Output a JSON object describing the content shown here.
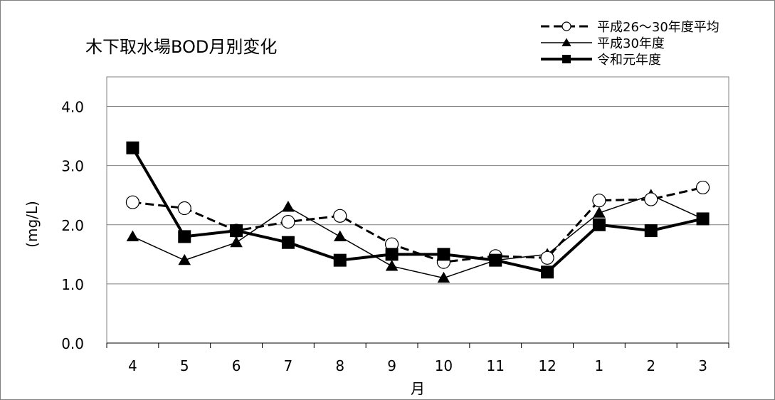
{
  "chart_data": {
    "type": "line",
    "title": "木下取水場BOD月別変化",
    "xlabel": "月",
    "ylabel": "(mg/L)",
    "categories": [
      "4",
      "5",
      "6",
      "7",
      "8",
      "9",
      "10",
      "11",
      "12",
      "1",
      "2",
      "3"
    ],
    "yticks": [
      "0.0",
      "1.0",
      "2.0",
      "3.0",
      "4.0"
    ],
    "ylim": [
      0,
      4.5
    ],
    "grid": true,
    "legend_position": "top-right",
    "series": [
      {
        "name": "平成26～30年度平均",
        "style": "dashed",
        "marker": "open-circle",
        "color": "#000000",
        "values": [
          2.38,
          2.28,
          1.9,
          2.05,
          2.15,
          1.67,
          1.37,
          1.47,
          1.44,
          2.41,
          2.43,
          2.63
        ]
      },
      {
        "name": "平成30年度",
        "style": "thin",
        "marker": "triangle",
        "color": "#000000",
        "values": [
          1.8,
          1.4,
          1.7,
          2.3,
          1.8,
          1.3,
          1.1,
          1.4,
          1.5,
          2.2,
          2.5,
          2.1
        ]
      },
      {
        "name": "令和元年度",
        "style": "thick",
        "marker": "square",
        "color": "#000000",
        "values": [
          3.3,
          1.8,
          1.9,
          1.7,
          1.4,
          1.5,
          1.5,
          1.4,
          1.2,
          2.0,
          1.9,
          2.1
        ]
      }
    ]
  }
}
